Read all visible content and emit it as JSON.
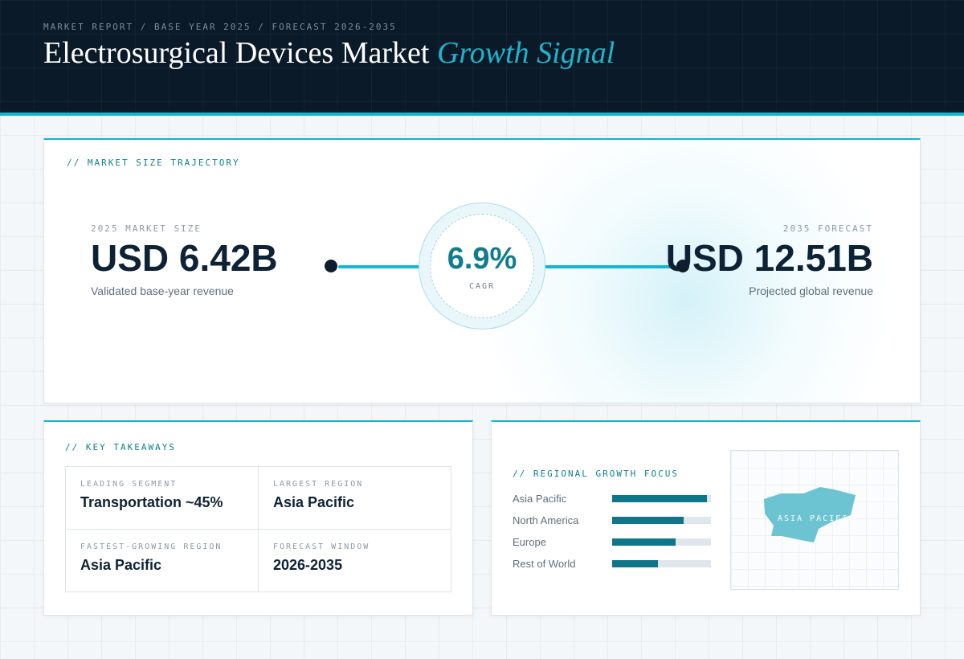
{
  "header": {
    "kicker": "MARKET REPORT / BASE YEAR 2025 / FORECAST 2026-2035",
    "title_main": "Electrosurgical Devices Market",
    "title_accent": "Growth Signal"
  },
  "trajectory": {
    "label": "// MARKET SIZE TRAJECTORY",
    "base": {
      "label": "2025 MARKET SIZE",
      "value": "USD 6.42B",
      "sub": "Validated base-year revenue"
    },
    "cagr": {
      "value": "6.9%",
      "label": "CAGR"
    },
    "forecast": {
      "label": "2035 FORECAST",
      "value": "USD 12.51B",
      "sub": "Projected global revenue"
    }
  },
  "takeaways": {
    "label": "// KEY TAKEAWAYS",
    "items": [
      {
        "label": "LEADING SEGMENT",
        "value": "Transportation ~45%"
      },
      {
        "label": "LARGEST REGION",
        "value": "Asia Pacific"
      },
      {
        "label": "FASTEST-GROWING REGION",
        "value": "Asia Pacific"
      },
      {
        "label": "FORECAST WINDOW",
        "value": "2026-2035"
      }
    ]
  },
  "regional": {
    "label": "// REGIONAL GROWTH FOCUS",
    "regions": [
      {
        "name": "Asia Pacific",
        "share": 0.96
      },
      {
        "name": "North America",
        "share": 0.72
      },
      {
        "name": "Europe",
        "share": 0.64
      },
      {
        "name": "Rest of World",
        "share": 0.46
      }
    ],
    "map_label": "ASIA PACIFIC",
    "colors": {
      "bar": "#0f7689",
      "track": "#dfe7ec",
      "map_shape": "#6cc3d2"
    }
  }
}
